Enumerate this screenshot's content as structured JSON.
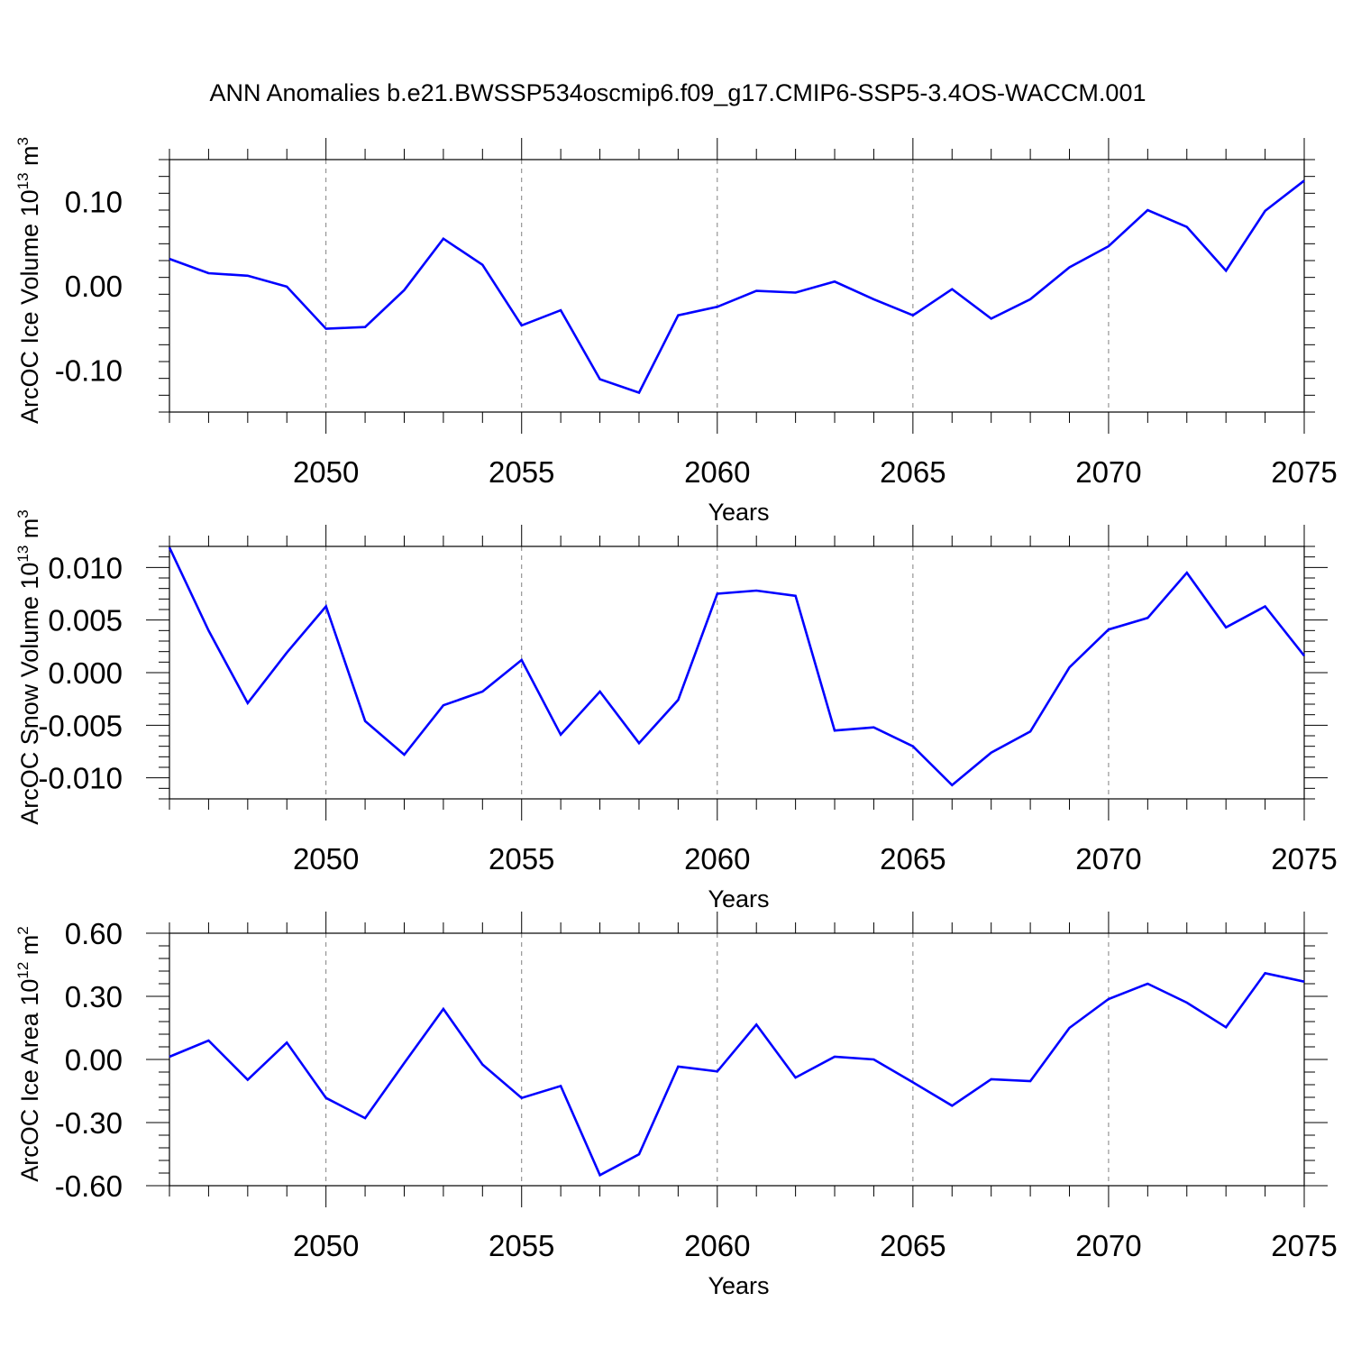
{
  "title": "ANN Anomalies b.e21.BWSSP534oscmip6.f09_g17.CMIP6-SSP5-3.4OS-WACCM.001",
  "colors": {
    "series": "#0000ff",
    "grid": "#808080",
    "axes": "#000000"
  },
  "chart_data": [
    {
      "type": "line",
      "ylabel": "ArcOC Ice Volume 10",
      "ylabel_unit": " m",
      "ylabel_exp": "13",
      "ylabel_unit_exp": "3",
      "xlabel": "Years",
      "xlim": [
        2046,
        2075
      ],
      "ylim": [
        -0.15,
        0.15
      ],
      "yticks": [
        -0.1,
        0.0,
        0.1
      ],
      "ytick_labels": [
        "-0.10",
        "0.00",
        "0.10"
      ],
      "xticks": [
        2050,
        2055,
        2060,
        2065,
        2070,
        2075
      ],
      "xtick_labels": [
        "2050",
        "2055",
        "2060",
        "2065",
        "2070",
        "2075"
      ],
      "grid": "x dashed at major ticks",
      "series": [
        {
          "x": [
            2046,
            2047,
            2048,
            2049,
            2050,
            2051,
            2052,
            2053,
            2054,
            2055,
            2056,
            2057,
            2058,
            2059,
            2060,
            2061,
            2062,
            2063,
            2064,
            2065,
            2066,
            2067,
            2068,
            2069,
            2070,
            2071,
            2072,
            2073,
            2074,
            2075
          ],
          "values": [
            0.032,
            0.015,
            0.012,
            -0.001,
            -0.051,
            -0.049,
            -0.005,
            0.056,
            0.025,
            -0.047,
            -0.029,
            -0.111,
            -0.127,
            -0.035,
            -0.025,
            -0.006,
            -0.008,
            0.005,
            -0.016,
            -0.035,
            -0.004,
            -0.039,
            -0.016,
            0.022,
            0.047,
            0.09,
            0.07,
            0.018,
            0.089,
            0.125
          ]
        }
      ]
    },
    {
      "type": "line",
      "ylabel": "ArcOC Snow Volume 10",
      "ylabel_unit": " m",
      "ylabel_exp": "13",
      "ylabel_unit_exp": "3",
      "xlabel": "Years",
      "xlim": [
        2046,
        2075
      ],
      "ylim": [
        -0.012,
        0.012
      ],
      "yticks": [
        -0.01,
        -0.005,
        0.0,
        0.005,
        0.01
      ],
      "ytick_labels": [
        "-0.010",
        "-0.005",
        "0.000",
        "0.005",
        "0.010"
      ],
      "xticks": [
        2050,
        2055,
        2060,
        2065,
        2070,
        2075
      ],
      "xtick_labels": [
        "2050",
        "2055",
        "2060",
        "2065",
        "2070",
        "2075"
      ],
      "grid": "x dashed at major ticks",
      "series": [
        {
          "x": [
            2046,
            2047,
            2048,
            2049,
            2050,
            2051,
            2052,
            2053,
            2054,
            2055,
            2056,
            2057,
            2058,
            2059,
            2060,
            2061,
            2062,
            2063,
            2064,
            2065,
            2066,
            2067,
            2068,
            2069,
            2070,
            2071,
            2072,
            2073,
            2074,
            2075
          ],
          "values": [
            0.0119,
            0.004,
            -0.0029,
            0.0019,
            0.0063,
            -0.0046,
            -0.0078,
            -0.0031,
            -0.0018,
            0.0012,
            -0.0059,
            -0.0018,
            -0.0067,
            -0.0026,
            0.0075,
            0.0078,
            0.0073,
            -0.0055,
            -0.0052,
            -0.007,
            -0.0107,
            -0.0076,
            -0.0056,
            0.0005,
            0.0041,
            0.0052,
            0.0095,
            0.0043,
            0.0063,
            0.0016
          ]
        }
      ]
    },
    {
      "type": "line",
      "ylabel": "ArcOC Ice Area 10",
      "ylabel_unit": " m",
      "ylabel_exp": "12",
      "ylabel_unit_exp": "2",
      "xlabel": "Years",
      "xlim": [
        2046,
        2075
      ],
      "ylim": [
        -0.6,
        0.6
      ],
      "yticks": [
        -0.6,
        -0.3,
        0.0,
        0.3,
        0.6
      ],
      "ytick_labels": [
        "-0.60",
        "-0.30",
        "0.00",
        "0.30",
        "0.60"
      ],
      "xticks": [
        2050,
        2055,
        2060,
        2065,
        2070,
        2075
      ],
      "xtick_labels": [
        "2050",
        "2055",
        "2060",
        "2065",
        "2070",
        "2075"
      ],
      "grid": "x dashed at major ticks",
      "series": [
        {
          "x": [
            2046,
            2047,
            2048,
            2049,
            2050,
            2051,
            2052,
            2053,
            2054,
            2055,
            2056,
            2057,
            2058,
            2059,
            2060,
            2061,
            2062,
            2063,
            2064,
            2065,
            2066,
            2067,
            2068,
            2069,
            2070,
            2071,
            2072,
            2073,
            2074,
            2075
          ],
          "values": [
            0.013,
            0.09,
            -0.097,
            0.08,
            -0.183,
            -0.279,
            -0.017,
            0.24,
            -0.024,
            -0.183,
            -0.126,
            -0.55,
            -0.451,
            -0.034,
            -0.057,
            0.166,
            -0.086,
            0.013,
            0.0,
            -0.109,
            -0.22,
            -0.094,
            -0.103,
            0.15,
            0.287,
            0.36,
            0.27,
            0.153,
            0.41,
            0.37
          ]
        }
      ]
    }
  ]
}
